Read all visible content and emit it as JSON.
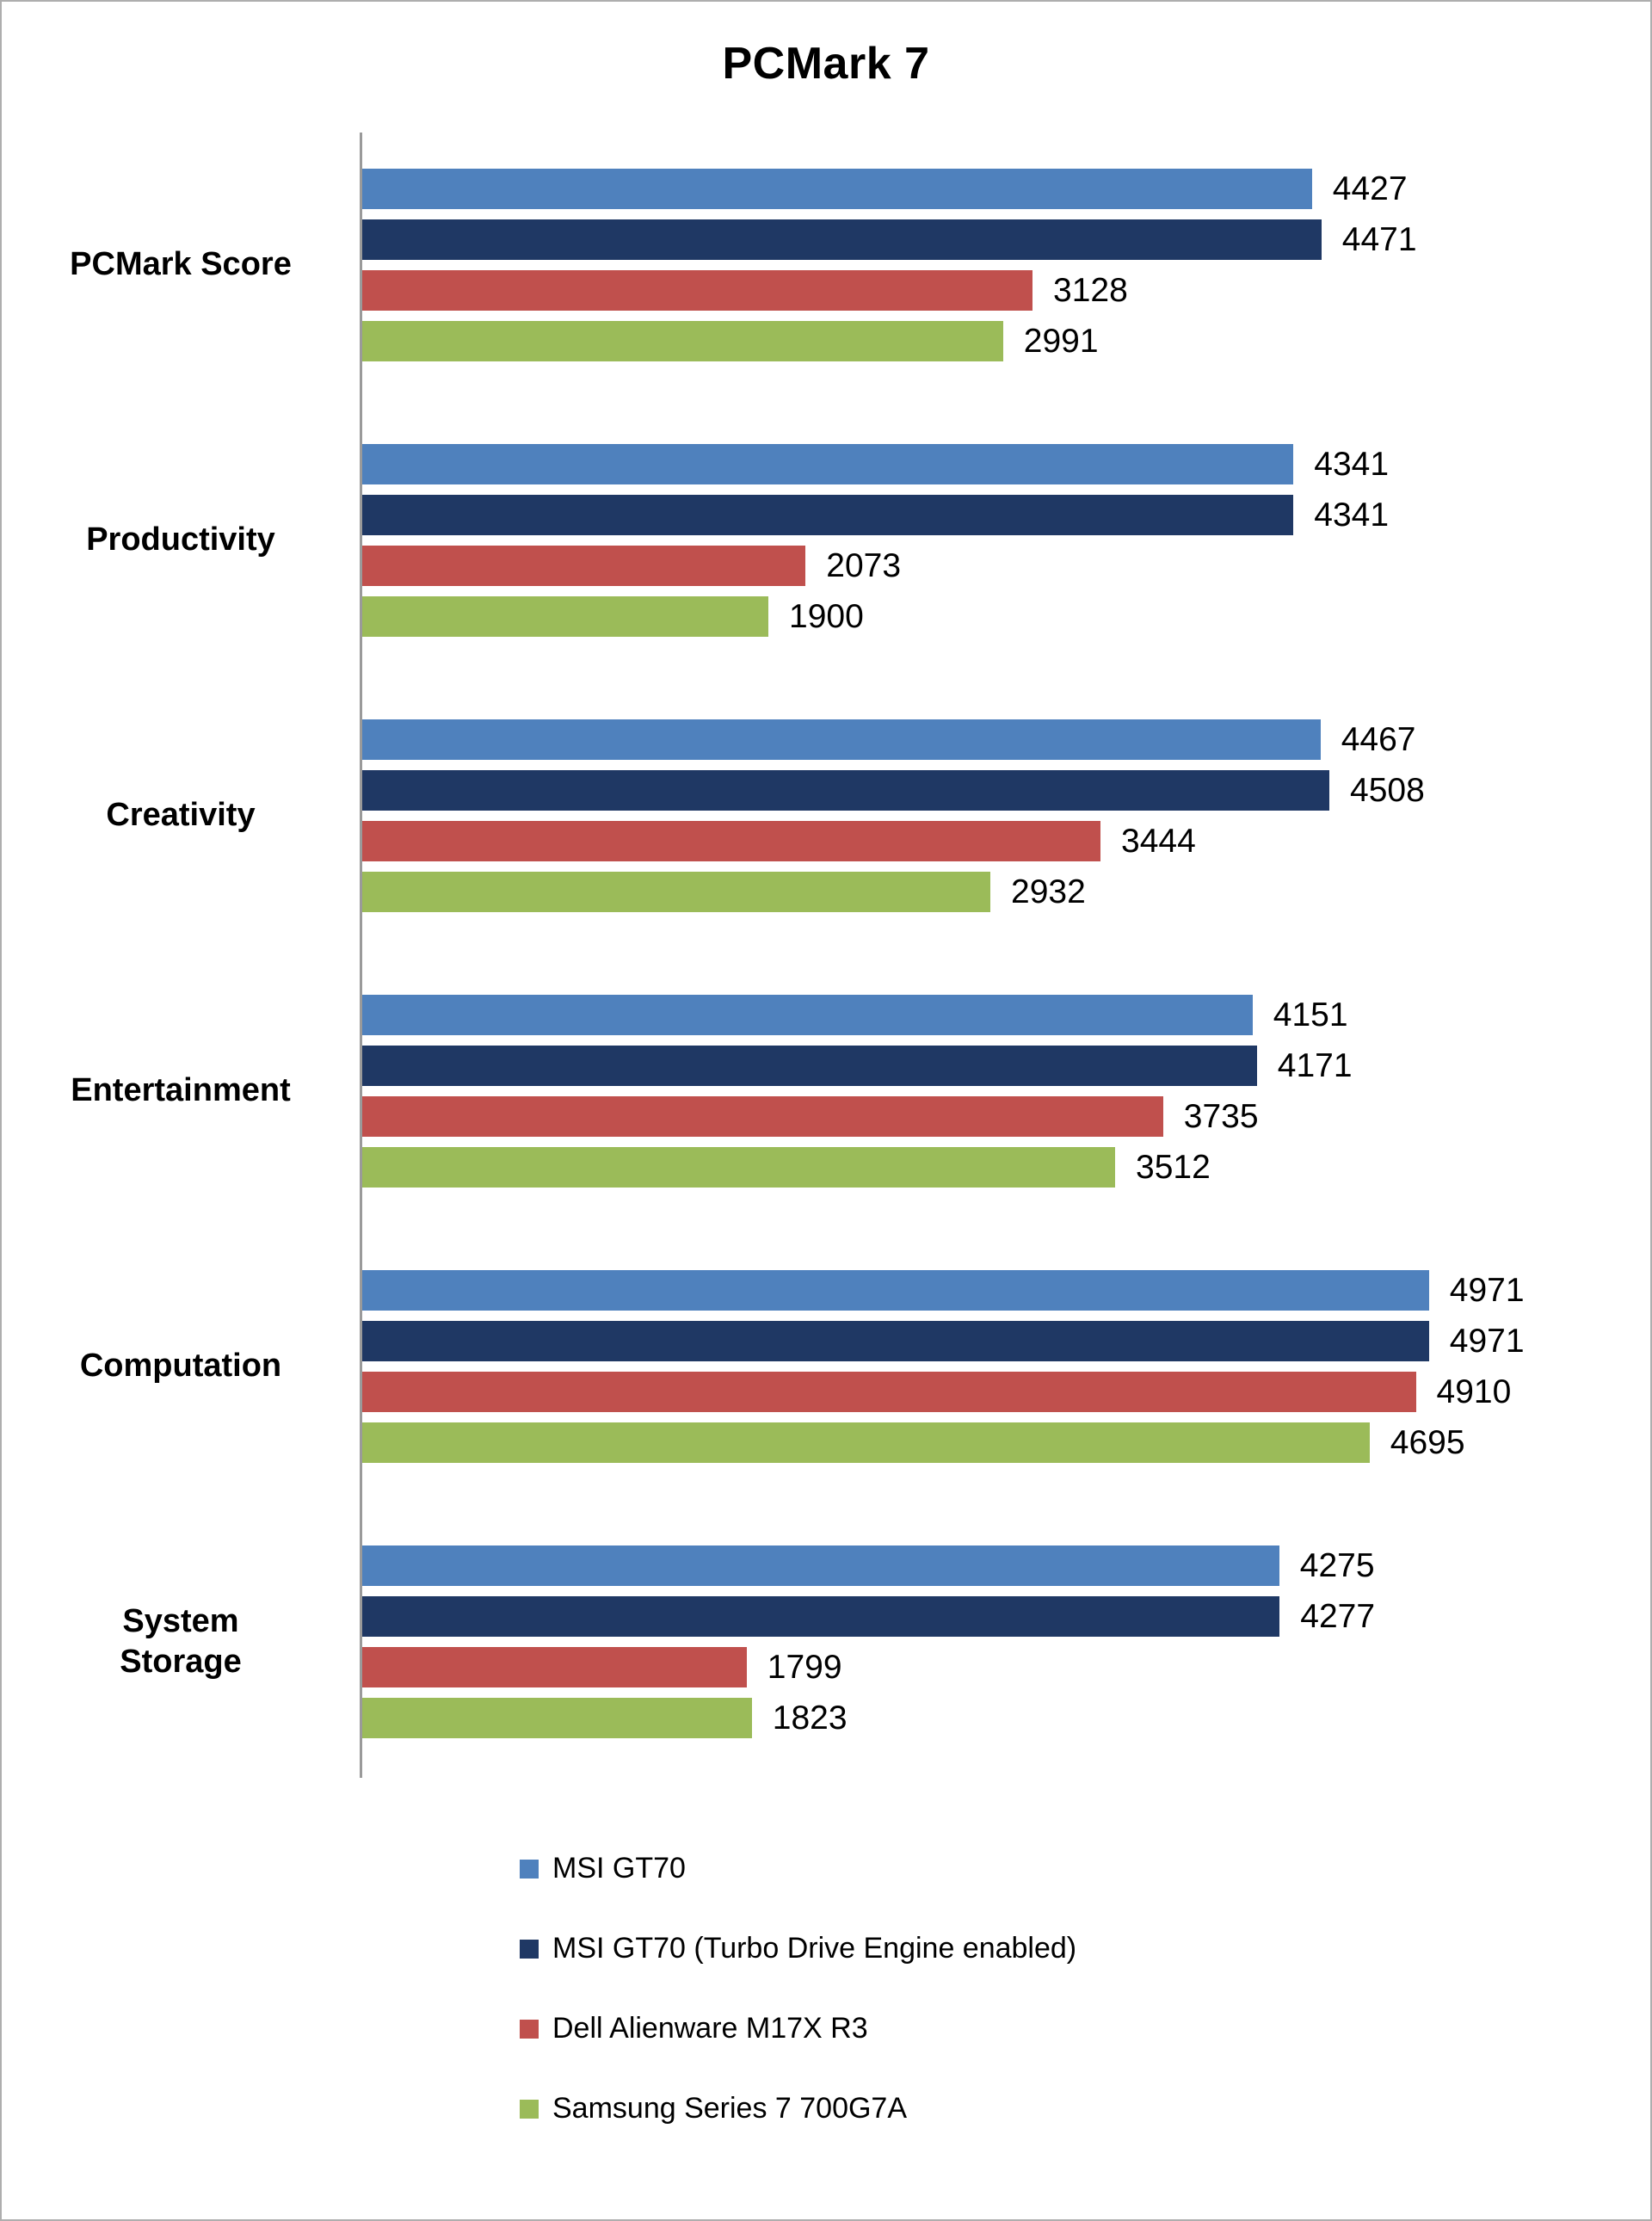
{
  "chart_data": {
    "type": "bar",
    "orientation": "horizontal",
    "title": "PCMark 7",
    "categories": [
      "PCMark Score",
      "Productivity",
      "Creativity",
      "Entertainment",
      "Computation",
      "System\nStorage"
    ],
    "series": [
      {
        "name": "MSI GT70",
        "color": "#4f81bd",
        "values": [
          4427,
          4341,
          4467,
          4151,
          4971,
          4275
        ]
      },
      {
        "name": "MSI GT70 (Turbo Drive Engine enabled)",
        "color": "#1f3864",
        "values": [
          4471,
          4341,
          4508,
          4171,
          4971,
          4277
        ]
      },
      {
        "name": "Dell Alienware M17X R3",
        "color": "#c0504d",
        "values": [
          3128,
          2073,
          3444,
          3735,
          4910,
          1799
        ]
      },
      {
        "name": "Samsung Series 7 700G7A",
        "color": "#9bbb59",
        "values": [
          2991,
          1900,
          2932,
          3512,
          4695,
          1823
        ]
      }
    ],
    "xlim": [
      0,
      6000
    ],
    "value_labels": true,
    "grid": false,
    "legend_position": "bottom-left",
    "axis_color": "#9a9a9a",
    "background_color": "#ffffff"
  }
}
